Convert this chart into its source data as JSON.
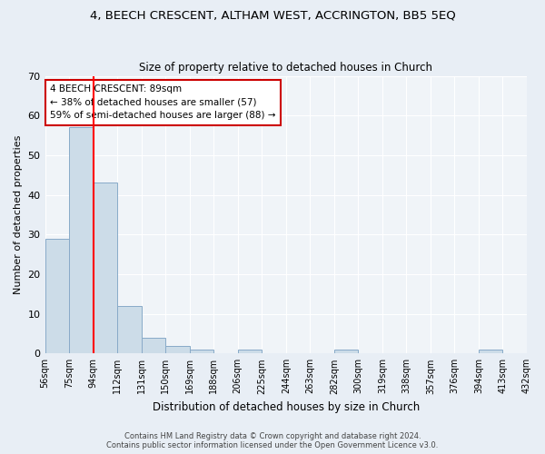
{
  "title": "4, BEECH CRESCENT, ALTHAM WEST, ACCRINGTON, BB5 5EQ",
  "subtitle": "Size of property relative to detached houses in Church",
  "xlabel": "Distribution of detached houses by size in Church",
  "ylabel": "Number of detached properties",
  "bar_values": [
    29,
    57,
    43,
    12,
    4,
    2,
    1,
    0,
    1,
    0,
    0,
    0,
    1,
    0,
    0,
    0,
    0,
    0,
    1,
    0
  ],
  "bar_labels": [
    "56sqm",
    "75sqm",
    "94sqm",
    "112sqm",
    "131sqm",
    "150sqm",
    "169sqm",
    "188sqm",
    "206sqm",
    "225sqm",
    "244sqm",
    "263sqm",
    "282sqm",
    "300sqm",
    "319sqm",
    "338sqm",
    "357sqm",
    "376sqm",
    "394sqm",
    "413sqm",
    "432sqm"
  ],
  "bar_color": "#ccdce8",
  "bar_edge_color": "#88aac8",
  "red_line_index": 1,
  "annotation_text": "4 BEECH CRESCENT: 89sqm\n← 38% of detached houses are smaller (57)\n59% of semi-detached houses are larger (88) →",
  "annotation_box_color": "#ffffff",
  "annotation_box_edge": "#cc0000",
  "ylim": [
    0,
    70
  ],
  "yticks": [
    0,
    10,
    20,
    30,
    40,
    50,
    60,
    70
  ],
  "footer_line1": "Contains HM Land Registry data © Crown copyright and database right 2024.",
  "footer_line2": "Contains public sector information licensed under the Open Government Licence v3.0.",
  "bg_color": "#e8eef5",
  "plot_bg_color": "#f0f4f8"
}
